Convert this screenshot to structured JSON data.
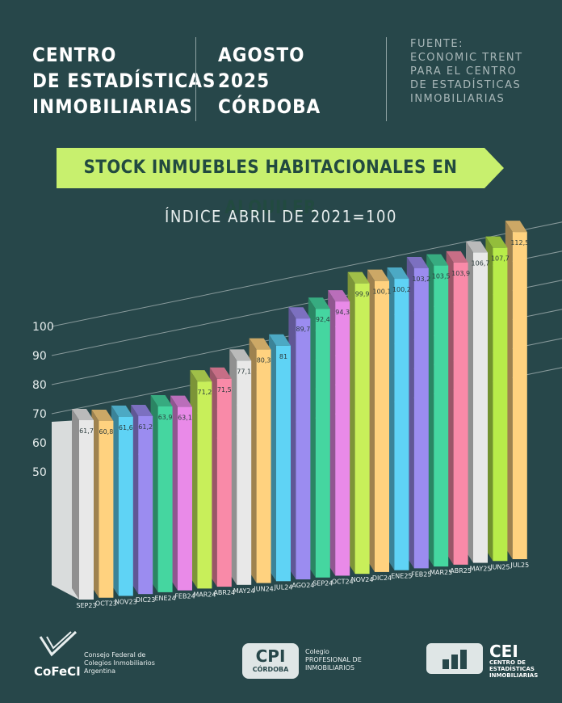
{
  "header": {
    "org_lines": [
      "CENTRO",
      "DE ESTADÍSTICAS",
      "INMOBILIARIAS"
    ],
    "date_lines": [
      "AGOSTO",
      "2025",
      "CÓRDOBA"
    ],
    "source_lines": [
      "FUENTE:",
      "ECONOMIC TRENT",
      "PARA EL CENTRO",
      "DE ESTADÍSTICAS",
      "INMOBILIARIAS"
    ]
  },
  "chart_data": {
    "type": "bar",
    "title": "STOCK INMUEBLES HABITACIONALES EN ALQUILER",
    "subtitle": "ÍNDICE ABRIL DE 2021=100",
    "categories": [
      "SEP23",
      "OCT23",
      "NOV23",
      "DIC23",
      "ENE24",
      "FEB24",
      "MAR24",
      "ABR24",
      "MAY24",
      "JUN24",
      "JUL24",
      "AGO24",
      "SEP24",
      "OCT24",
      "NOV24",
      "DIC24",
      "ENE25",
      "FEB25",
      "MAR25",
      "ABR25",
      "MAY25",
      "JUN25",
      "JUL25"
    ],
    "values": [
      61.7,
      60.8,
      61.6,
      61.2,
      63.9,
      63.1,
      71.2,
      71.5,
      77.1,
      80.3,
      81,
      89.7,
      92.4,
      94.3,
      99.9,
      100.1,
      100.2,
      103.2,
      103.5,
      103.9,
      106.7,
      107.7,
      112.5
    ],
    "value_labels": [
      "61,7",
      "60,8",
      "61,6",
      "61,2",
      "63,9",
      "63,1",
      "71,2",
      "71,5",
      "77,1",
      "80,3",
      "81",
      "89,7",
      "92,4",
      "94,3",
      "99,9",
      "100,1",
      "100,2",
      "103,2",
      "103,5",
      "103,9",
      "106,7",
      "107,7",
      "112,5"
    ],
    "colors": [
      "#e8e8e8",
      "#ffd27f",
      "#5fd3f5",
      "#9b8cf0",
      "#45d6a0",
      "#e98ae8",
      "#c8ef5a",
      "#f98aa8",
      "#e8e8e8",
      "#ffd27f",
      "#5fd3f5",
      "#9b8cf0",
      "#45d6a0",
      "#e98ae8",
      "#c8ef5a",
      "#ffd27f",
      "#5fd3f5",
      "#9b8cf0",
      "#45d6a0",
      "#f98aa8",
      "#e8e8e8",
      "#b8ec4a",
      "#ffd27f"
    ],
    "y_ticks": [
      50,
      60,
      70,
      80,
      90,
      100
    ],
    "grid": true,
    "banner_color": "#c8f06e"
  },
  "footer": {
    "cofeci_logo": "CoFeCI",
    "cofeci_text": [
      "Consejo Federal de",
      "Colegios Inmobiliarios",
      "Argentina"
    ],
    "cpi_logo_top": "CPI",
    "cpi_logo_bottom": "CÓRDOBA",
    "cpi_text": [
      "Colegio",
      "PROFESIONAL DE",
      "INMOBILIARIOS"
    ],
    "cei_logo": "CEI",
    "cei_text": [
      "CENTRO DE",
      "ESTADÍSTICAS",
      "INMOBILIARIAS"
    ]
  }
}
